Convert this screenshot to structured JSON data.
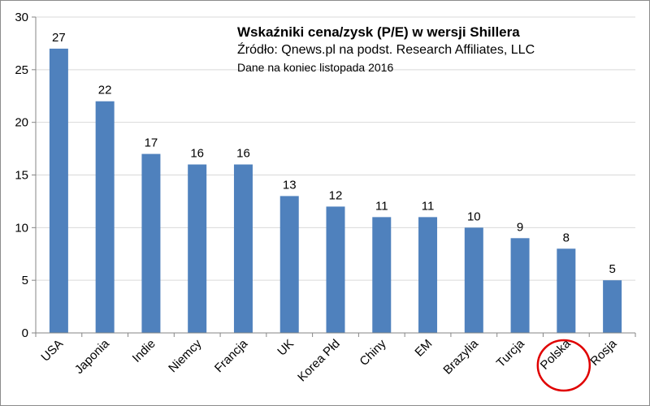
{
  "chart_data": {
    "type": "bar",
    "title": "Wskaźniki cena/zysk (P/E) w wersji Shillera",
    "subtitle": "Źródło: Qnews.pl na podst. Research Affiliates, LLC",
    "note": "Dane na koniec listopada 2016",
    "xlabel": "",
    "ylabel": "",
    "categories": [
      "USA",
      "Japonia",
      "Indie",
      "Niemcy",
      "Francja",
      "UK",
      "Korea Płd",
      "Chiny",
      "EM",
      "Brazylia",
      "Turcja",
      "Polska",
      "Rosja"
    ],
    "values": [
      27,
      22,
      17,
      16,
      16,
      13,
      12,
      11,
      11,
      10,
      9,
      8,
      5
    ],
    "ylim": [
      0,
      30
    ],
    "yticks": [
      0,
      5,
      10,
      15,
      20,
      25,
      30
    ],
    "grid": true,
    "legend": "none",
    "data_labels": true,
    "highlight": "Polska",
    "colors": {
      "bar": "#4f81bd",
      "grid": "#d9d9d9",
      "axis": "#868686",
      "highlight_circle": "#e00000"
    }
  }
}
